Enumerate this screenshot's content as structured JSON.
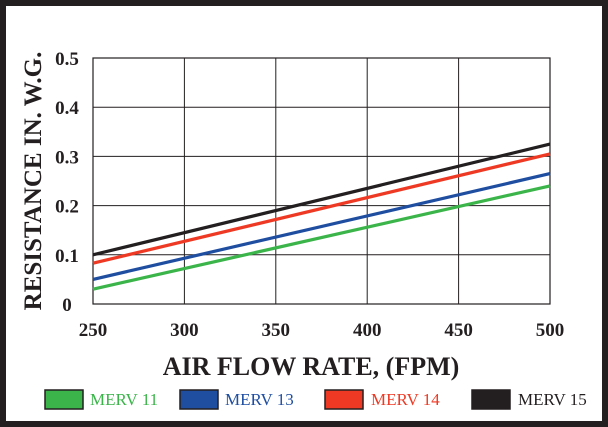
{
  "chart_data": {
    "type": "line",
    "xlabel": "AIR FLOW RATE, (FPM)",
    "ylabel": "RESISTANCE IN. W.G.",
    "x_ticks": [
      250,
      300,
      350,
      400,
      450,
      500
    ],
    "y_ticks": [
      0,
      0.1,
      0.2,
      0.3,
      0.4,
      0.5
    ],
    "x_tick_labels": [
      "250",
      "300",
      "350",
      "400",
      "450",
      "500"
    ],
    "y_tick_labels": [
      "0",
      "0.1",
      "0.2",
      "0.3",
      "0.4",
      "0.5"
    ],
    "xlim": [
      250,
      500
    ],
    "ylim": [
      0,
      0.5
    ],
    "grid": true,
    "legend_position": "bottom",
    "series": [
      {
        "name": "MERV 11",
        "color": "#3bb54a",
        "x": [
          250,
          500
        ],
        "y": [
          0.03,
          0.24
        ]
      },
      {
        "name": "MERV 13",
        "color": "#1f4ea1",
        "x": [
          250,
          500
        ],
        "y": [
          0.05,
          0.265
        ]
      },
      {
        "name": "MERV 14",
        "color": "#ee3a24",
        "x": [
          250,
          500
        ],
        "y": [
          0.083,
          0.305
        ]
      },
      {
        "name": "MERV 15",
        "color": "#231f20",
        "x": [
          250,
          500
        ],
        "y": [
          0.1,
          0.325
        ]
      }
    ]
  }
}
